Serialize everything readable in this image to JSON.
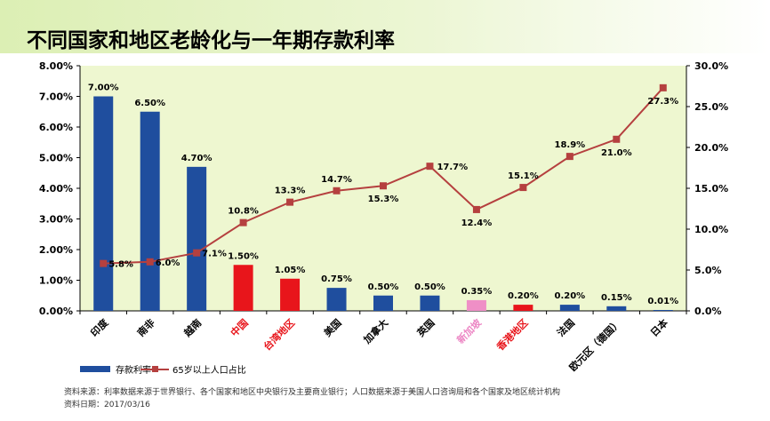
{
  "title": "不同国家和地区老龄化与一年期存款利率",
  "chart_data": {
    "type": "bar",
    "categories": [
      "印度",
      "南非",
      "越南",
      "中国",
      "台湾地区",
      "美国",
      "加拿大",
      "英国",
      "新加坡",
      "香港地区",
      "法国",
      "欧元区（德国）",
      "日本"
    ],
    "category_colors": [
      "#000000",
      "#000000",
      "#000000",
      "#e8151b",
      "#e8151b",
      "#000000",
      "#000000",
      "#000000",
      "#ec86c4",
      "#e8151b",
      "#000000",
      "#000000",
      "#000000"
    ],
    "series": [
      {
        "name": "存款利率",
        "type": "bar",
        "axis": "left",
        "values": [
          7.0,
          6.5,
          4.7,
          1.5,
          1.05,
          0.75,
          0.5,
          0.5,
          0.35,
          0.2,
          0.2,
          0.15,
          0.01
        ],
        "labels": [
          "7.00%",
          "6.50%",
          "4.70%",
          "1.50%",
          "1.05%",
          "0.75%",
          "0.50%",
          "0.50%",
          "0.35%",
          "0.20%",
          "0.20%",
          "0.15%",
          "0.01%"
        ],
        "colors": [
          "#1f4e9e",
          "#1f4e9e",
          "#1f4e9e",
          "#e8151b",
          "#e8151b",
          "#1f4e9e",
          "#1f4e9e",
          "#1f4e9e",
          "#ef8fc6",
          "#e8151b",
          "#1f4e9e",
          "#1f4e9e",
          "#1f4e9e"
        ]
      },
      {
        "name": "65岁以上人口占比",
        "type": "line",
        "axis": "right",
        "color": "#b5403f",
        "values": [
          5.8,
          6.0,
          7.1,
          10.8,
          13.3,
          14.7,
          15.3,
          17.7,
          12.4,
          15.1,
          18.9,
          21.0,
          27.3
        ],
        "labels": [
          "5.8%",
          "6.0%",
          "7.1%",
          "10.8%",
          "13.3%",
          "14.7%",
          "15.3%",
          "17.7%",
          "12.4%",
          "15.1%",
          "18.9%",
          "21.0%",
          "27.3%"
        ]
      }
    ],
    "y_left": {
      "lim": [
        0,
        8
      ],
      "ticks": [
        "0.00%",
        "1.00%",
        "2.00%",
        "3.00%",
        "4.00%",
        "5.00%",
        "6.00%",
        "7.00%",
        "8.00%"
      ]
    },
    "y_right": {
      "lim": [
        0,
        30
      ],
      "ticks": [
        "0.0%",
        "5.0%",
        "10.0%",
        "15.0%",
        "20.0%",
        "25.0%",
        "30.0%"
      ]
    },
    "plot_bg": "#eef7d0",
    "grid": false,
    "legend": "bottom-left"
  },
  "legend": {
    "bar_label": "存款利率",
    "line_label": "65岁以上人口占比"
  },
  "source_line1": "资料来源：利率数据来源于世界银行、各个国家和地区中央银行及主要商业银行；人口数据来源于美国人口咨询局和各个国家及地区统计机构",
  "source_line2": "资料日期：2017/03/16"
}
